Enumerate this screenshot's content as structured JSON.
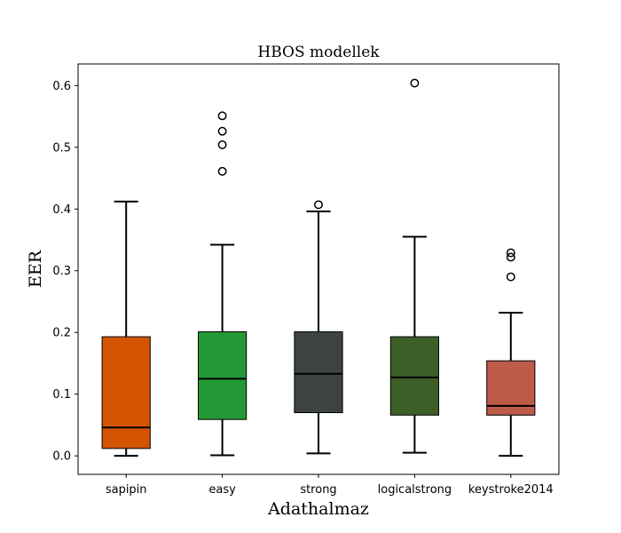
{
  "chart_data": {
    "type": "box",
    "title": "HBOS modellek",
    "xlabel": "Adathalmaz",
    "ylabel": "EER",
    "ylim": [
      -0.03,
      0.635
    ],
    "yticks": [
      0.0,
      0.1,
      0.2,
      0.3,
      0.4,
      0.5,
      0.6
    ],
    "ytick_labels": [
      "0.0",
      "0.1",
      "0.2",
      "0.3",
      "0.4",
      "0.5",
      "0.6"
    ],
    "grid": false,
    "categories": [
      "sapipin",
      "easy",
      "strong",
      "logicalstrong",
      "keystroke2014"
    ],
    "boxes": [
      {
        "name": "sapipin",
        "color": "#d35400",
        "whisker_low": 0.0,
        "q1": 0.012,
        "median": 0.046,
        "q3": 0.193,
        "whisker_high": 0.412,
        "outliers": []
      },
      {
        "name": "easy",
        "color": "#229934",
        "whisker_low": 0.001,
        "q1": 0.059,
        "median": 0.125,
        "q3": 0.201,
        "whisker_high": 0.342,
        "outliers": [
          0.461,
          0.504,
          0.526,
          0.551
        ]
      },
      {
        "name": "strong",
        "color": "#3d4343",
        "whisker_low": 0.004,
        "q1": 0.07,
        "median": 0.133,
        "q3": 0.201,
        "whisker_high": 0.396,
        "outliers": [
          0.407
        ]
      },
      {
        "name": "logicalstrong",
        "color": "#3e5e28",
        "whisker_low": 0.005,
        "q1": 0.066,
        "median": 0.127,
        "q3": 0.193,
        "whisker_high": 0.355,
        "outliers": [
          0.604
        ]
      },
      {
        "name": "keystroke2014",
        "color": "#bd5b48",
        "whisker_low": 0.0,
        "q1": 0.066,
        "median": 0.081,
        "q3": 0.154,
        "whisker_high": 0.232,
        "outliers": [
          0.29,
          0.322,
          0.329
        ]
      }
    ]
  }
}
